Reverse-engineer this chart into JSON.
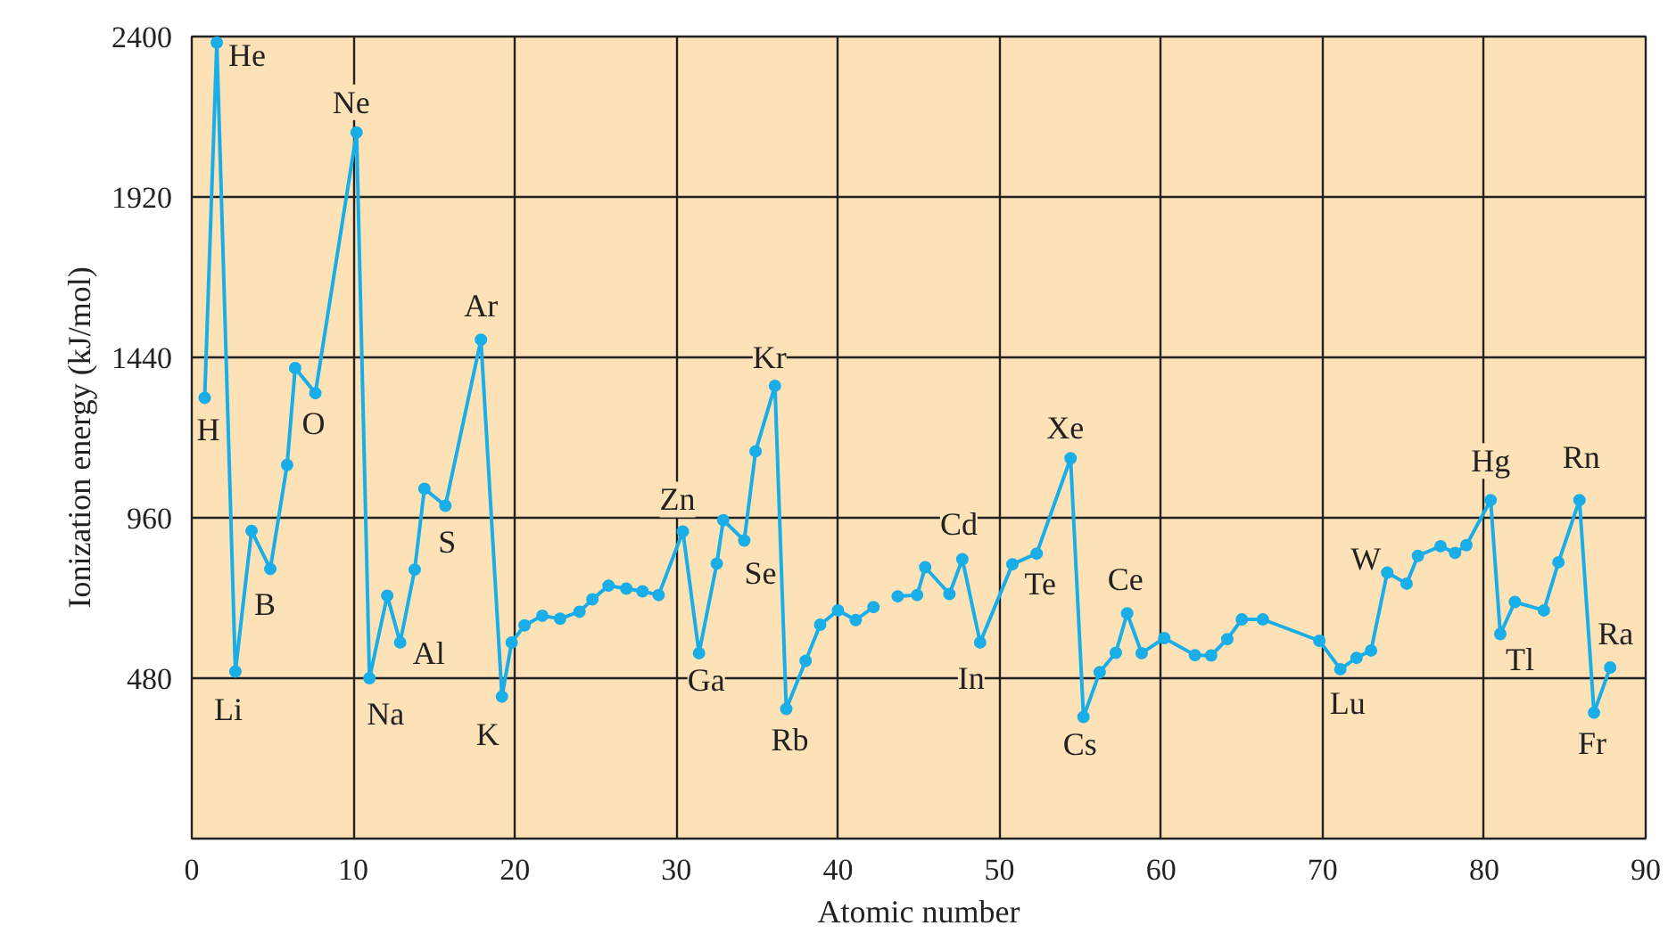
{
  "chart_data": {
    "type": "line",
    "xlabel": "Atomic number",
    "ylabel": "Ionization energy (kJ/mol)",
    "xlim": [
      0,
      90
    ],
    "ylim": [
      0,
      2400
    ],
    "xticks": [
      0,
      10,
      20,
      30,
      40,
      50,
      60,
      70,
      80,
      90
    ],
    "yticks": [
      480,
      960,
      1440,
      1920,
      2400
    ],
    "grid": true,
    "marker": "circle",
    "line_style": "solid",
    "series": [
      {
        "color": "#1aaee8",
        "x": [
          0.8,
          1.55,
          2.7,
          3.7,
          4.86,
          5.9,
          6.4,
          7.65,
          10.2,
          11.0,
          12.1,
          12.9,
          13.8,
          14.4,
          15.7,
          17.9,
          19.2,
          19.8,
          20.6,
          21.7,
          22.8,
          24.0,
          24.8,
          25.8,
          26.9,
          27.9,
          28.9,
          30.4,
          31.4,
          32.5,
          32.9,
          34.2,
          34.9,
          36.1,
          36.8,
          38.0,
          38.9,
          40.0,
          41.1,
          42.2,
          43.0,
          43.7,
          44.9,
          45.4,
          46.9,
          47.7,
          48.8,
          50.8,
          52.3,
          54.4,
          55.2,
          56.2,
          57.2,
          57.9,
          58.8,
          60.2,
          62.1,
          63.1,
          64.1,
          65.0,
          66.3,
          69.8,
          71.1,
          72.1,
          73.0,
          74.0,
          75.2,
          75.9,
          77.3,
          78.2,
          78.9,
          80.4,
          81.0,
          81.9,
          83.7,
          84.6,
          85.9,
          86.8,
          87.8
        ],
        "values": [
          1319,
          2382,
          500,
          921,
          807,
          1118,
          1408,
          1333,
          2113,
          480,
          727,
          587,
          805,
          1047,
          996,
          1493,
          425,
          587,
          638,
          667,
          658,
          679,
          716,
          757,
          748,
          740,
          729,
          919,
          555,
          823,
          953,
          892,
          1159,
          1355,
          388,
          532,
          640,
          683,
          654,
          693,
          null,
          725,
          729,
          812,
          732,
          836,
          587,
          821,
          853,
          1138,
          364,
          498,
          556,
          674,
          555,
          600,
          549,
          548,
          597,
          656,
          656,
          592,
          507,
          541,
          563,
          796,
          763,
          846,
          875,
          855,
          878,
          1013,
          612,
          708,
          683,
          827,
          1013,
          377,
          512
        ]
      }
    ],
    "annotations": [
      {
        "text": "H",
        "x": 0.8,
        "y": 1319
      },
      {
        "text": "He",
        "x": 1.55,
        "y": 2382
      },
      {
        "text": "Li",
        "x": 2.7,
        "y": 500
      },
      {
        "text": "B",
        "x": 4.86,
        "y": 807
      },
      {
        "text": "O",
        "x": 7.65,
        "y": 1333
      },
      {
        "text": "Ne",
        "x": 10.2,
        "y": 2113
      },
      {
        "text": "Na",
        "x": 11.0,
        "y": 480
      },
      {
        "text": "Al",
        "x": 12.9,
        "y": 587
      },
      {
        "text": "S",
        "x": 15.7,
        "y": 996
      },
      {
        "text": "Ar",
        "x": 17.9,
        "y": 1493
      },
      {
        "text": "K",
        "x": 19.2,
        "y": 425
      },
      {
        "text": "Zn",
        "x": 30.4,
        "y": 919
      },
      {
        "text": "Ga",
        "x": 31.4,
        "y": 555
      },
      {
        "text": "Se",
        "x": 34.2,
        "y": 892
      },
      {
        "text": "Kr",
        "x": 36.1,
        "y": 1355
      },
      {
        "text": "Rb",
        "x": 36.8,
        "y": 388
      },
      {
        "text": "Cd",
        "x": 47.7,
        "y": 836
      },
      {
        "text": "In",
        "x": 48.8,
        "y": 587
      },
      {
        "text": "Te",
        "x": 52.3,
        "y": 853
      },
      {
        "text": "Xe",
        "x": 54.4,
        "y": 1138
      },
      {
        "text": "Cs",
        "x": 55.2,
        "y": 364
      },
      {
        "text": "Ce",
        "x": 57.9,
        "y": 674
      },
      {
        "text": "Lu",
        "x": 71.1,
        "y": 507
      },
      {
        "text": "W",
        "x": 74.0,
        "y": 796
      },
      {
        "text": "Hg",
        "x": 80.4,
        "y": 1013
      },
      {
        "text": "Tl",
        "x": 81.0,
        "y": 612
      },
      {
        "text": "Rn",
        "x": 85.9,
        "y": 1013
      },
      {
        "text": "Fr",
        "x": 86.8,
        "y": 377
      },
      {
        "text": "Ra",
        "x": 87.8,
        "y": 512
      }
    ]
  }
}
